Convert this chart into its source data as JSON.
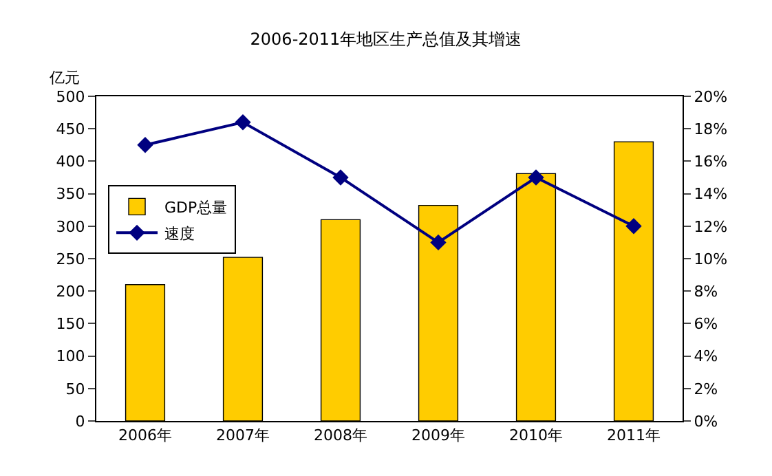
{
  "chart_data": {
    "type": "bar",
    "title": "2006-2011年地区生产总值及其增速",
    "ylabel": "亿元",
    "categories": [
      "2006年",
      "2007年",
      "2008年",
      "2009年",
      "2010年",
      "2011年"
    ],
    "series": [
      {
        "name": "GDP总量",
        "color": "#ffcc00",
        "values": [
          210,
          252,
          310,
          332,
          381,
          430
        ]
      },
      {
        "name": "速度",
        "type": "line",
        "axis": "y2",
        "color": "#000080",
        "marker": "diamond",
        "values": [
          17.0,
          18.4,
          15.0,
          11.0,
          15.0,
          12.0
        ]
      }
    ],
    "ylim": [
      0,
      500
    ],
    "yticks": [
      0,
      50,
      100,
      150,
      200,
      250,
      300,
      350,
      400,
      450,
      500
    ],
    "y2lim": [
      0,
      20
    ],
    "y2ticks": [
      {
        "value": 0,
        "label": "0%"
      },
      {
        "value": 2,
        "label": "2%"
      },
      {
        "value": 4,
        "label": "4%"
      },
      {
        "value": 6,
        "label": "6%"
      },
      {
        "value": 8,
        "label": "8%"
      },
      {
        "value": 10,
        "label": "10%"
      },
      {
        "value": 12,
        "label": "12%"
      },
      {
        "value": 14,
        "label": "14%"
      },
      {
        "value": 16,
        "label": "16%"
      },
      {
        "value": 18,
        "label": "18%"
      },
      {
        "value": 20,
        "label": "20%"
      }
    ],
    "legend": "left"
  }
}
